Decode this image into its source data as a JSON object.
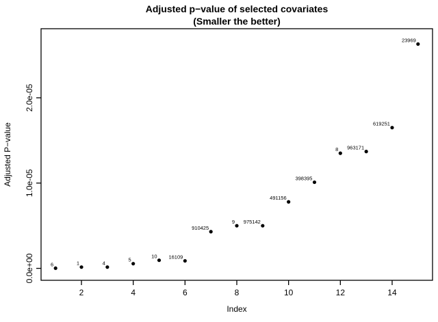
{
  "chart_data": {
    "type": "scatter",
    "title_line1": "Adjusted p−value of selected covariates",
    "title_line2": "(Smaller the better)",
    "xlabel": "Index",
    "ylabel": "Adjusted P−value",
    "xlim": [
      0.44,
      15.56
    ],
    "ylim": [
      -1.4e-06,
      2.81e-05
    ],
    "x_ticks": [
      2,
      4,
      6,
      8,
      10,
      12,
      14
    ],
    "y_ticks": [
      {
        "value": 0,
        "label": "0.0e+00"
      },
      {
        "value": 1e-05,
        "label": "1.0e-05"
      },
      {
        "value": 2e-05,
        "label": "2.0e-05"
      }
    ],
    "grid": false,
    "legend": "none",
    "point_color": "#000000",
    "background": "#ffffff",
    "points": [
      {
        "x": 1,
        "y": 2e-08,
        "label": "6"
      },
      {
        "x": 2,
        "y": 1.5e-07,
        "label": "1"
      },
      {
        "x": 3,
        "y": 1.5e-07,
        "label": "4"
      },
      {
        "x": 4,
        "y": 5.5e-07,
        "label": "5"
      },
      {
        "x": 5,
        "y": 9.5e-07,
        "label": "10"
      },
      {
        "x": 6,
        "y": 8.8e-07,
        "label": "16109"
      },
      {
        "x": 7,
        "y": 4.3e-06,
        "label": "910425"
      },
      {
        "x": 8,
        "y": 5e-06,
        "label": "9"
      },
      {
        "x": 9,
        "y": 5e-06,
        "label": "975142"
      },
      {
        "x": 10,
        "y": 7.8e-06,
        "label": "491156"
      },
      {
        "x": 11,
        "y": 1.01e-05,
        "label": "398395"
      },
      {
        "x": 12,
        "y": 1.35e-05,
        "label": "8"
      },
      {
        "x": 13,
        "y": 1.37e-05,
        "label": "963171"
      },
      {
        "x": 14,
        "y": 1.65e-05,
        "label": "619251"
      },
      {
        "x": 15,
        "y": 2.63e-05,
        "label": "23969"
      }
    ]
  }
}
